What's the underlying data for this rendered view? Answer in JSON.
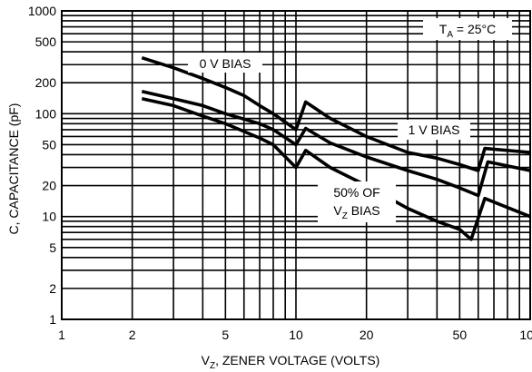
{
  "chart_data": {
    "type": "line",
    "xlabel": {
      "main": "V",
      "sub": "Z",
      "rest": ", ZENER VOLTAGE (VOLTS)"
    },
    "ylabel": "C, CAPACITANCE (pF)",
    "xscale": "log",
    "yscale": "log",
    "xlim": [
      1,
      100
    ],
    "ylim": [
      1,
      1000
    ],
    "grid": true,
    "x_ticks": [
      "1",
      "2",
      "5",
      "10",
      "20",
      "50",
      "100"
    ],
    "y_ticks": [
      "1",
      "2",
      "5",
      "10",
      "20",
      "50",
      "100",
      "200",
      "500",
      "1000"
    ],
    "series": [
      {
        "name": "0 V BIAS",
        "points": [
          [
            2.2,
            350
          ],
          [
            3,
            280
          ],
          [
            4,
            220
          ],
          [
            5,
            180
          ],
          [
            6,
            150
          ],
          [
            7,
            120
          ],
          [
            8,
            100
          ],
          [
            10,
            70
          ],
          [
            11,
            130
          ],
          [
            14,
            90
          ],
          [
            20,
            60
          ],
          [
            30,
            42
          ],
          [
            40,
            37
          ],
          [
            50,
            32
          ],
          [
            60,
            28
          ],
          [
            64,
            46
          ],
          [
            100,
            42
          ]
        ]
      },
      {
        "name": "1 V BIAS",
        "points": [
          [
            2.2,
            165
          ],
          [
            3,
            140
          ],
          [
            4,
            120
          ],
          [
            5,
            100
          ],
          [
            7,
            80
          ],
          [
            8,
            70
          ],
          [
            10,
            50
          ],
          [
            11,
            72
          ],
          [
            14,
            52
          ],
          [
            20,
            38
          ],
          [
            30,
            28
          ],
          [
            40,
            23
          ],
          [
            50,
            19
          ],
          [
            60,
            16
          ],
          [
            66,
            34
          ],
          [
            100,
            28
          ]
        ]
      },
      {
        "name": "50% OF VZ BIAS",
        "points": [
          [
            2.2,
            140
          ],
          [
            3,
            120
          ],
          [
            4,
            95
          ],
          [
            5,
            80
          ],
          [
            7,
            58
          ],
          [
            8,
            50
          ],
          [
            10,
            30
          ],
          [
            11,
            44
          ],
          [
            14,
            30
          ],
          [
            20,
            20
          ],
          [
            30,
            12
          ],
          [
            40,
            9
          ],
          [
            50,
            7.5
          ],
          [
            56,
            6
          ],
          [
            64,
            15
          ],
          [
            100,
            10
          ]
        ]
      }
    ],
    "annotations": [
      {
        "id": "bias0",
        "text": "0 V BIAS"
      },
      {
        "id": "bias1",
        "text": "1 V BIAS"
      },
      {
        "id": "bias50_line1",
        "text": "50% OF"
      },
      {
        "id": "bias50_line2",
        "main": "V",
        "sub": "Z",
        "rest": " BIAS"
      },
      {
        "id": "temp",
        "main": "T",
        "sub": "A",
        "rest": " = 25°C"
      }
    ]
  }
}
